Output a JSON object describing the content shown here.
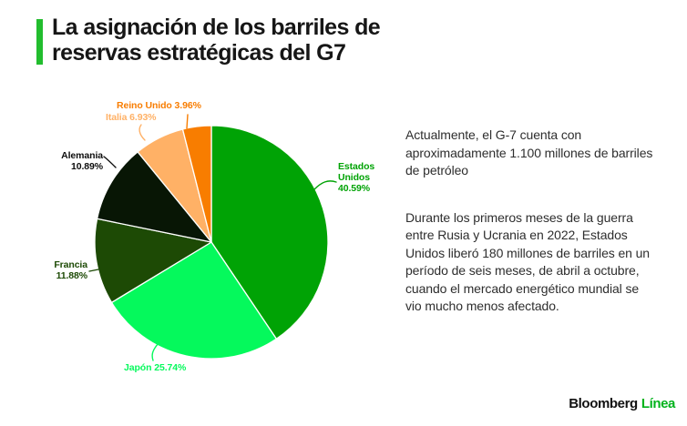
{
  "header": {
    "title": "La asignación de los barriles de reservas estratégicas del G7",
    "title_lines": [
      "La asignación de los barriles de",
      "reservas estratégicas del G7"
    ],
    "accent_color": "#22bd2e"
  },
  "chart_data": {
    "type": "pie",
    "title": "La asignación de los barriles de reservas estratégicas del G7",
    "direction": "clockwise",
    "start_angle_deg": 0,
    "legend": "none",
    "label_position": "outside",
    "slices": [
      {
        "id": "estados-unidos",
        "label": "Estados Unidos",
        "value": 40.59,
        "pct_text": "40.59%",
        "color": "#00a305",
        "label_lines": [
          "Estados",
          "Unidos",
          "40.59%"
        ]
      },
      {
        "id": "japon",
        "label": "Japón",
        "value": 25.74,
        "pct_text": "25.74%",
        "color": "#05f95c",
        "label_lines": [
          "Japón 25.74%"
        ]
      },
      {
        "id": "francia",
        "label": "Francia",
        "value": 11.88,
        "pct_text": "11.88%",
        "color": "#1d4a05",
        "label_lines": [
          "Francia",
          "11.88%"
        ]
      },
      {
        "id": "alemania",
        "label": "Alemania",
        "value": 10.89,
        "pct_text": "10.89%",
        "color": "#081605",
        "label_color": "#0d0d0d",
        "label_lines": [
          "Alemania",
          "10.89%"
        ]
      },
      {
        "id": "italia",
        "label": "Italia",
        "value": 6.93,
        "pct_text": "6.93%",
        "color": "#ffb166",
        "label_lines": [
          "Italia 6.93%"
        ]
      },
      {
        "id": "reino-unido",
        "label": "Reino Unido",
        "value": 3.96,
        "pct_text": "3.96%",
        "color": "#f87d00",
        "label_lines": [
          "Reino Unido 3.96%"
        ]
      }
    ]
  },
  "annotation": {
    "paragraph1": "Actualmente, el G-7 cuenta con aproximadamente 1.100 millones de barriles de petróleo",
    "paragraph2": "Durante los primeros meses de la guerra entre Rusia y Ucrania en 2022, Estados Unidos liberó 180 millones de barriles en un período de seis meses, de abril a octubre, cuando el mercado energético mundial se vio mucho menos afectado."
  },
  "footer": {
    "brand_primary": "Bloomberg",
    "brand_secondary": "Línea",
    "brand_primary_color": "#121212",
    "brand_secondary_color": "#00b31c"
  }
}
